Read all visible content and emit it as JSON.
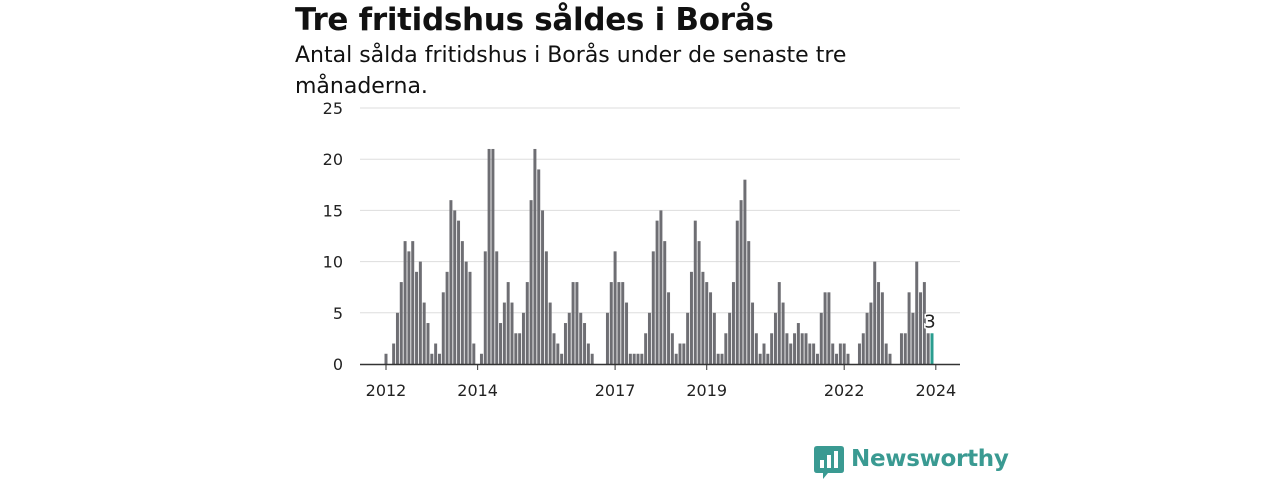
{
  "chart_data": {
    "type": "bar",
    "title": "Tre fritidshus såldes i Borås",
    "subtitle": "Antal sålda fritidshus i Borås under de senaste tre månaderna.",
    "ylim": [
      0,
      25
    ],
    "yticks": [
      0,
      5,
      10,
      15,
      20,
      25
    ],
    "xticks": [
      "2012",
      "2014",
      "2017",
      "2019",
      "2022",
      "2024"
    ],
    "grid": true,
    "series": [
      {
        "values": [
          1,
          0,
          2,
          5,
          8,
          12,
          11,
          12,
          9,
          10,
          6,
          4,
          1,
          2,
          1,
          7,
          9,
          16,
          15,
          14,
          12,
          10,
          9,
          2,
          0,
          1,
          11,
          21,
          21,
          11,
          4,
          6,
          8,
          6,
          3,
          3,
          5,
          8,
          16,
          21,
          19,
          15,
          11,
          6,
          3,
          2,
          1,
          4,
          5,
          8,
          8,
          5,
          4,
          2,
          1,
          0,
          0,
          0,
          5,
          8,
          11,
          8,
          8,
          6,
          1,
          1,
          1,
          1,
          3,
          5,
          11,
          14,
          15,
          12,
          7,
          3,
          1,
          2,
          2,
          5,
          9,
          14,
          12,
          9,
          8,
          7,
          5,
          1,
          1,
          3,
          5,
          8,
          14,
          16,
          18,
          12,
          6,
          3,
          1,
          2,
          1,
          3,
          5,
          8,
          6,
          3,
          2,
          3,
          4,
          3,
          3,
          2,
          2,
          1,
          5,
          7,
          7,
          2,
          1,
          2,
          2,
          1,
          0,
          0,
          2,
          3,
          5,
          6,
          10,
          8,
          7,
          2,
          1,
          0,
          0,
          3,
          3,
          7,
          5,
          10,
          7,
          8,
          3,
          3
        ],
        "highlight_value": 3,
        "highlight_label": "3"
      }
    ],
    "colors": {
      "bar": "#6e6e73",
      "highlight": "#2a9d8f",
      "grid": "#dddddd",
      "axis": "#333333"
    }
  },
  "brand": {
    "name": "Newsworthy",
    "logo_color": "#3a9a92"
  }
}
